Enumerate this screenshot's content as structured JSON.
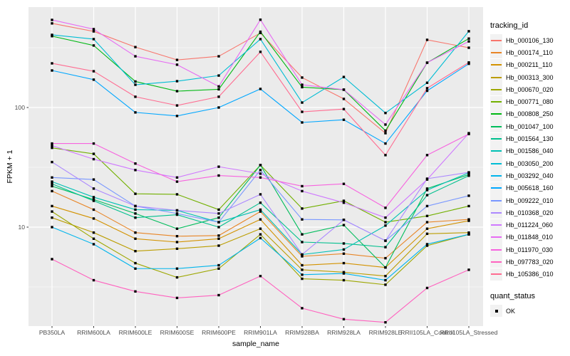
{
  "legend": {
    "tracking_title": "tracking_id",
    "quant_title": "quant_status",
    "quant_items": [
      "OK"
    ]
  },
  "axes": {
    "x_label": "sample_name",
    "y_label": "FPKM + 1",
    "y_ticks": [
      {
        "label": "100",
        "value": 100
      },
      {
        "label": "10",
        "value": 10
      }
    ],
    "grid_major": [
      10,
      100
    ],
    "grid_minor": [
      3.162,
      31.62,
      316.2
    ]
  },
  "style": {
    "panel_bg": "#EBEBEB",
    "grid_color": "#FFFFFF",
    "tick_text_color": "#4D4D4D",
    "marker_color": "#000000"
  },
  "chart_data": {
    "type": "line",
    "title": "",
    "xlabel": "sample_name",
    "ylabel": "FPKM + 1",
    "yscale": "log10",
    "ylim": [
      1.5,
      680
    ],
    "legend_position": "right",
    "grid": true,
    "point_marker": {
      "shape": "square",
      "color": "#000000",
      "label": "OK"
    },
    "categories": [
      "PB350LA",
      "RRIM600LA",
      "RRIM600LE",
      "RRIM600SE",
      "RRIM600PE",
      "RRIM901LA",
      "RRIM928BA",
      "RRIM928LA",
      "RRIM928LE",
      "RRII105LA_Control",
      "RRII105LA_Stressed"
    ],
    "series": [
      {
        "name": "Hb_000106_130",
        "color": "#F8766D",
        "values": [
          505,
          433,
          320,
          250,
          268,
          420,
          178,
          118,
          61,
          368,
          316
        ]
      },
      {
        "name": "Hb_000174_110",
        "color": "#E88526",
        "values": [
          20,
          14,
          9,
          8.4,
          8.5,
          13.5,
          5.7,
          6.0,
          5.5,
          11,
          11.6
        ]
      },
      {
        "name": "Hb_000211_110",
        "color": "#D39200",
        "values": [
          15,
          11.8,
          8,
          7.5,
          8,
          11.6,
          4.8,
          5.0,
          4.6,
          9.7,
          11.3
        ]
      },
      {
        "name": "Hb_000313_300",
        "color": "#BB9D00",
        "values": [
          12,
          9,
          6.3,
          6.6,
          7,
          9.7,
          4.4,
          4.2,
          3.9,
          8.8,
          9.0
        ]
      },
      {
        "name": "Hb_000670_020",
        "color": "#9DA700",
        "values": [
          13.5,
          8,
          5,
          3.8,
          4.5,
          8.7,
          3.7,
          3.6,
          3.3,
          7.0,
          8.7
        ]
      },
      {
        "name": "Hb_000771_080",
        "color": "#72B000",
        "values": [
          46,
          41,
          19,
          18.8,
          14,
          33,
          14.3,
          16.6,
          11,
          12.4,
          15
        ]
      },
      {
        "name": "Hb_000808_250",
        "color": "#00B813",
        "values": [
          395,
          330,
          165,
          137,
          142,
          430,
          148,
          141,
          64,
          237,
          377
        ]
      },
      {
        "name": "Hb_001047_100",
        "color": "#00BD5C",
        "values": [
          22,
          17,
          13,
          9.7,
          12,
          33,
          8.7,
          10.4,
          4.6,
          21,
          27.5
        ]
      },
      {
        "name": "Hb_001564_130",
        "color": "#00C08E",
        "values": [
          23,
          16.6,
          12,
          12.7,
          10,
          16,
          7.5,
          7.3,
          6.8,
          18.5,
          26.9
        ]
      },
      {
        "name": "Hb_001586_040",
        "color": "#00C0B4",
        "values": [
          24,
          17.8,
          14,
          13.8,
          11,
          14,
          5.9,
          6.5,
          10.3,
          20.4,
          28.5
        ]
      },
      {
        "name": "Hb_003050_200",
        "color": "#00BDD4",
        "values": [
          405,
          373,
          155,
          166,
          185,
          373,
          110,
          180,
          90,
          161,
          434
        ]
      },
      {
        "name": "Hb_003292_040",
        "color": "#00B5EC",
        "values": [
          10,
          7.2,
          4.5,
          4.5,
          4.8,
          8.1,
          4.0,
          4.1,
          3.6,
          7.2,
          8.7
        ]
      },
      {
        "name": "Hb_005618_160",
        "color": "#00A7FF",
        "values": [
          204,
          171,
          91,
          85,
          100,
          143,
          75,
          79,
          50,
          138,
          232
        ]
      },
      {
        "name": "Hb_009222_010",
        "color": "#7997FF",
        "values": [
          26,
          25,
          15,
          13,
          11,
          30,
          11.6,
          11.5,
          7.7,
          15,
          18.3
        ]
      },
      {
        "name": "Hb_010368_020",
        "color": "#AC88FF",
        "values": [
          35,
          21,
          15,
          13.8,
          13,
          18.8,
          5.9,
          11.5,
          7.7,
          25.4,
          28.7
        ]
      },
      {
        "name": "Hb_011224_060",
        "color": "#CF78FF",
        "values": [
          48,
          37,
          30,
          26,
          32,
          28,
          20,
          16,
          12,
          25,
          61
        ]
      },
      {
        "name": "Hb_011848_010",
        "color": "#E76BF3",
        "values": [
          540,
          452,
          268,
          228,
          150,
          542,
          155,
          141,
          72,
          237,
          357
        ]
      },
      {
        "name": "Hb_011970_030",
        "color": "#F763DF",
        "values": [
          50,
          50,
          34,
          24,
          27,
          26,
          22,
          23,
          14.5,
          40,
          60
        ]
      },
      {
        "name": "Hb_097783_020",
        "color": "#FF62BF",
        "values": [
          5.4,
          3.6,
          2.9,
          2.56,
          2.7,
          3.9,
          2.1,
          1.7,
          1.6,
          3.1,
          4.4
        ]
      },
      {
        "name": "Hb_105386_010",
        "color": "#FF6C91",
        "values": [
          234,
          201,
          123,
          104,
          123,
          292,
          92,
          97,
          40,
          145,
          238
        ]
      }
    ]
  }
}
